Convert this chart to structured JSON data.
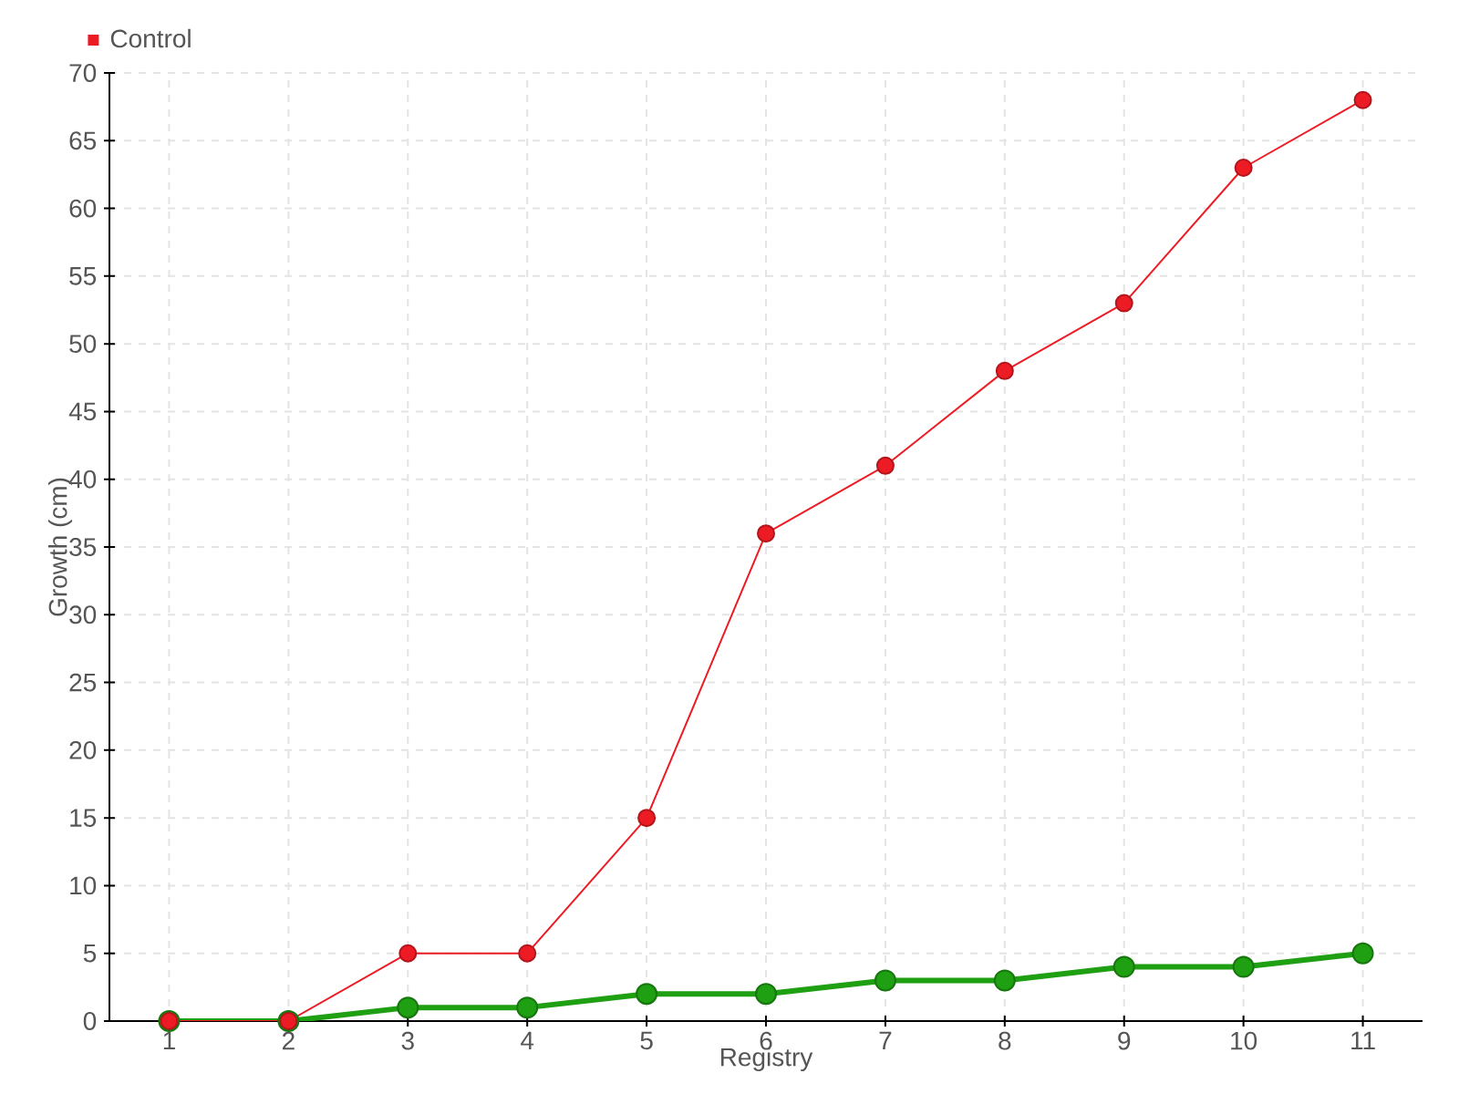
{
  "chart_data": {
    "type": "line",
    "xlabel": "Registry",
    "ylabel": "Growth (cm)",
    "categories": [
      "1",
      "2",
      "3",
      "4",
      "5",
      "6",
      "7",
      "8",
      "9",
      "10",
      "11"
    ],
    "series": [
      {
        "color": "#1f9f12",
        "values": [
          0,
          0,
          1,
          1,
          2,
          2,
          3,
          3,
          4,
          4,
          5
        ]
      },
      {
        "name": "Control",
        "color": "#ed1c24",
        "values": [
          0,
          0,
          5,
          5,
          15,
          36,
          41,
          48,
          53,
          63,
          68
        ]
      }
    ],
    "ylim": [
      0,
      70
    ],
    "yticks": [
      0,
      5,
      10,
      15,
      20,
      25,
      30,
      35,
      40,
      45,
      50,
      55,
      60,
      65,
      70
    ],
    "grid": true,
    "legend": "top left",
    "marker": "circle"
  }
}
